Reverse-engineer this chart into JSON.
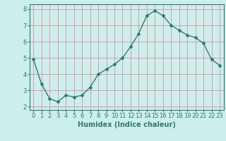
{
  "x": [
    0,
    1,
    2,
    3,
    4,
    5,
    6,
    7,
    8,
    9,
    10,
    11,
    12,
    13,
    14,
    15,
    16,
    17,
    18,
    19,
    20,
    21,
    22,
    23
  ],
  "y": [
    4.9,
    3.4,
    2.5,
    2.3,
    2.7,
    2.6,
    2.7,
    3.2,
    4.0,
    4.3,
    4.6,
    5.0,
    5.7,
    6.5,
    7.6,
    7.9,
    7.6,
    7.0,
    6.7,
    6.4,
    6.25,
    5.9,
    4.9,
    4.55
  ],
  "xlabel": "Humidex (Indice chaleur)",
  "ylabel": "",
  "bg_color": "#cceeed",
  "line_color": "#2e7d6e",
  "marker": "D",
  "marker_size": 2.0,
  "line_width": 1.0,
  "grid_color": "#e08080",
  "ylim": [
    1.8,
    8.3
  ],
  "xlim": [
    -0.5,
    23.5
  ],
  "yticks": [
    2,
    3,
    4,
    5,
    6,
    7,
    8
  ],
  "xticks": [
    0,
    1,
    2,
    3,
    4,
    5,
    6,
    7,
    8,
    9,
    10,
    11,
    12,
    13,
    14,
    15,
    16,
    17,
    18,
    19,
    20,
    21,
    22,
    23
  ],
  "xlabel_fontsize": 7,
  "tick_fontsize": 6
}
